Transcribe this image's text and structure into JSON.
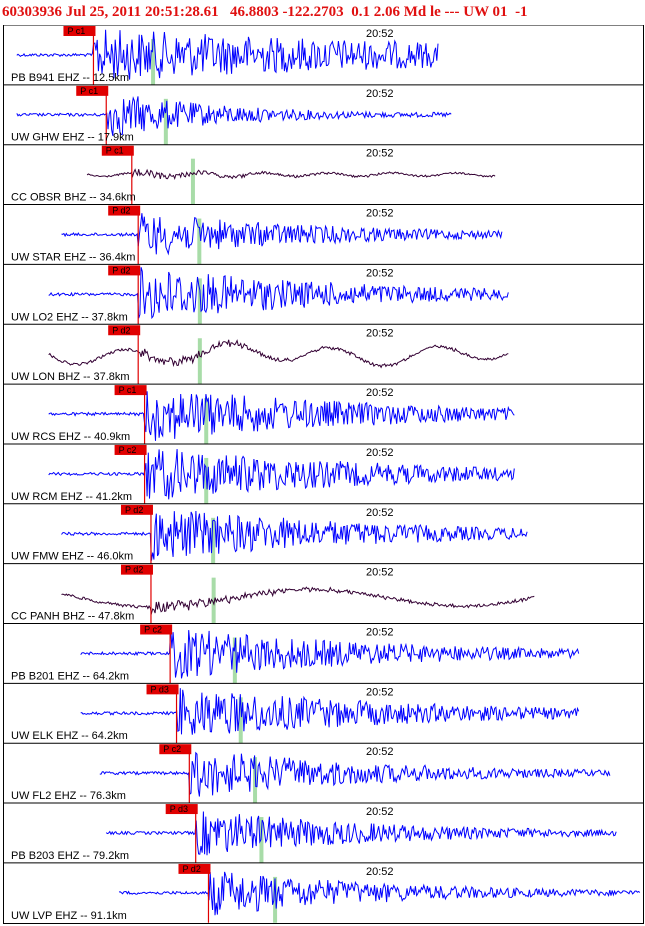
{
  "header": {
    "event_id": "60303936",
    "date": "Jul 25, 2011",
    "time": "20:51:28.61",
    "lat_lon": "46.8803 -122.2703",
    "mag_info": "0.1 2.06 Md le ---",
    "network": "UW 01",
    "flag": "-1"
  },
  "chart_data": {
    "type": "line",
    "time_tick_label": "20:52",
    "colors": {
      "short_period": "#0000ff",
      "broadband": "#330033",
      "pick": "#e00000",
      "s_marker": "#a8dca8"
    },
    "panels": [
      {
        "label": "PB B941 EHZ -- 12.5km",
        "pick": "P c1",
        "kind": "sp",
        "start": 0.02,
        "pick_at": 0.14,
        "end": 0.68,
        "amp": 0.9,
        "decay": 0.25
      },
      {
        "label": "UW GHW EHZ -- 17.9km",
        "pick": "P c1",
        "kind": "sp",
        "start": 0.02,
        "pick_at": 0.16,
        "end": 0.7,
        "amp": 0.8,
        "decay": 0.9
      },
      {
        "label": "CC OBSR BHZ -- 34.6km",
        "pick": "P c1",
        "kind": "bb",
        "start": 0.13,
        "pick_at": 0.2,
        "end": 0.77,
        "amp": 0.35,
        "decay": 0.8
      },
      {
        "label": "UW STAR EHZ -- 36.4km",
        "pick": "P d2",
        "kind": "sp",
        "start": 0.09,
        "pick_at": 0.21,
        "end": 0.78,
        "amp": 0.75,
        "decay": 0.6
      },
      {
        "label": "UW LO2 EHZ -- 37.8km",
        "pick": "P d2",
        "kind": "sp",
        "start": 0.07,
        "pick_at": 0.21,
        "end": 0.79,
        "amp": 0.95,
        "decay": 0.55
      },
      {
        "label": "UW LON BHZ -- 37.8km",
        "pick": "P d2",
        "kind": "bb2",
        "start": 0.07,
        "pick_at": 0.21,
        "end": 0.79,
        "amp": 0.55,
        "decay": 0.9
      },
      {
        "label": "UW RCS EHZ -- 40.9km",
        "pick": "P c1",
        "kind": "sp",
        "start": 0.07,
        "pick_at": 0.22,
        "end": 0.8,
        "amp": 0.95,
        "decay": 0.5
      },
      {
        "label": "UW RCM EHZ -- 41.2km",
        "pick": "P c2",
        "kind": "sp",
        "start": 0.07,
        "pick_at": 0.22,
        "end": 0.8,
        "amp": 0.95,
        "decay": 0.5
      },
      {
        "label": "UW FMW EHZ -- 46.0km",
        "pick": "P d2",
        "kind": "sp",
        "start": 0.09,
        "pick_at": 0.23,
        "end": 0.82,
        "amp": 0.95,
        "decay": 0.55
      },
      {
        "label": "CC PANH BHZ -- 47.8km",
        "pick": "P d2",
        "kind": "bb3",
        "start": 0.09,
        "pick_at": 0.23,
        "end": 0.83,
        "amp": 0.6,
        "decay": 1.0
      },
      {
        "label": "PB B201 EHZ -- 64.2km",
        "pick": "P c2",
        "kind": "sp",
        "start": 0.12,
        "pick_at": 0.26,
        "end": 0.9,
        "amp": 0.9,
        "decay": 0.6
      },
      {
        "label": "UW ELK EHZ -- 64.2km",
        "pick": "P d3",
        "kind": "sp",
        "start": 0.12,
        "pick_at": 0.27,
        "end": 0.9,
        "amp": 0.9,
        "decay": 0.55
      },
      {
        "label": "UW FL2 EHZ -- 76.3km",
        "pick": "P c2",
        "kind": "sp",
        "start": 0.15,
        "pick_at": 0.29,
        "end": 0.95,
        "amp": 0.85,
        "decay": 0.7
      },
      {
        "label": "PB B203 EHZ -- 79.2km",
        "pick": "P d3",
        "kind": "sp",
        "start": 0.16,
        "pick_at": 0.3,
        "end": 0.96,
        "amp": 0.8,
        "decay": 0.7
      },
      {
        "label": "UW LVP EHZ -- 91.1km",
        "pick": "P d2",
        "kind": "sp",
        "start": 0.18,
        "pick_at": 0.32,
        "end": 1.0,
        "amp": 0.8,
        "decay": 0.75
      }
    ]
  }
}
